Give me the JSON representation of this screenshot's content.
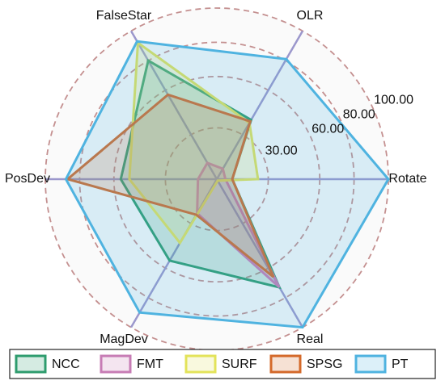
{
  "chart_data": {
    "type": "radar",
    "categories": [
      "Rotate",
      "OLR",
      "FalseStar",
      "PosDev",
      "MagDev",
      "Real"
    ],
    "ylim": [
      0,
      100
    ],
    "yticks": [
      {
        "value": 30,
        "label": "30.00"
      },
      {
        "value": 60,
        "label": "60.00"
      },
      {
        "value": 80,
        "label": "80.00"
      },
      {
        "value": 100,
        "label": "100.00"
      }
    ],
    "grid": true,
    "legend": "bottom",
    "series": [
      {
        "name": "NCC",
        "color": "#2e9c6e",
        "values": [
          9,
          40,
          80,
          56,
          55,
          73
        ]
      },
      {
        "name": "FMT",
        "color": "#c77cb5",
        "values": [
          5,
          7,
          11,
          11,
          23,
          73
        ]
      },
      {
        "name": "SURF",
        "color": "#e3e35a",
        "values": [
          24,
          38,
          92,
          51,
          43,
          1
        ]
      },
      {
        "name": "SPSG",
        "color": "#d4692a",
        "values": [
          9,
          39,
          57,
          87,
          24,
          66
        ]
      },
      {
        "name": "PT",
        "color": "#4fb3e0",
        "values": [
          100,
          81,
          93,
          88,
          90,
          100
        ]
      }
    ]
  }
}
